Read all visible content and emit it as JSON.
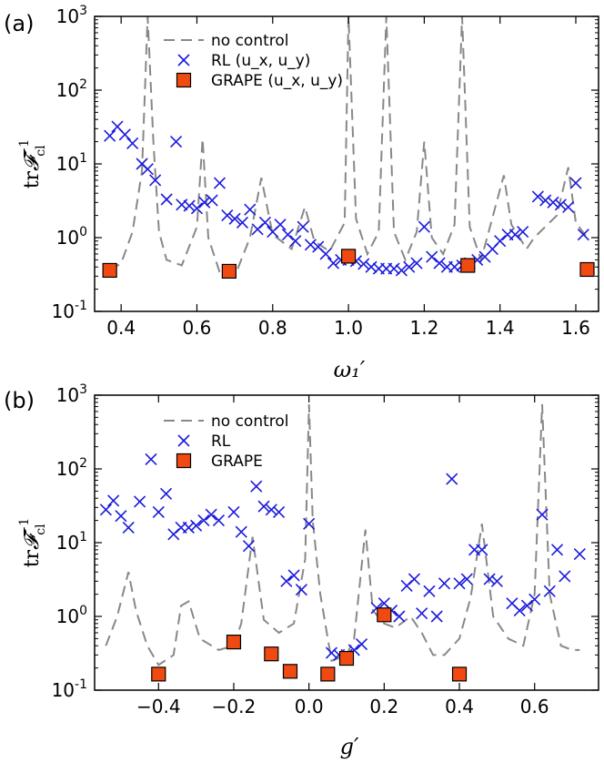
{
  "chart_data": [
    {
      "type": "line",
      "panel_label": "(a)",
      "xlabel": "ω₁′",
      "ylabel": "tr 𝓕_cl⁻¹",
      "xlim": [
        0.33,
        1.66
      ],
      "ylim_log10": [
        -1,
        3
      ],
      "yscale": "log",
      "xticks": [
        0.4,
        0.6,
        0.8,
        1.0,
        1.2,
        1.4,
        1.6
      ],
      "xtick_labels": [
        "0.4",
        "0.6",
        "0.8",
        "1.0",
        "1.2",
        "1.4",
        "1.6"
      ],
      "ytick_exponents": [
        -1,
        0,
        1,
        2,
        3
      ],
      "legend": [
        "no control",
        "RL (u_x, u_y)",
        "GRAPE (u_x, u_y)"
      ],
      "legend_position": "upper left",
      "series": [
        {
          "name": "no control",
          "kind": "dashed-line",
          "color": "#888888",
          "points": [
            [
              0.37,
              0.36
            ],
            [
              0.4,
              0.45
            ],
            [
              0.43,
              1.2
            ],
            [
              0.455,
              8
            ],
            [
              0.47,
              1000
            ],
            [
              0.485,
              20
            ],
            [
              0.5,
              1.2
            ],
            [
              0.52,
              0.5
            ],
            [
              0.56,
              0.42
            ],
            [
              0.6,
              1.4
            ],
            [
              0.615,
              22
            ],
            [
              0.63,
              1.0
            ],
            [
              0.66,
              0.34
            ],
            [
              0.7,
              0.3
            ],
            [
              0.74,
              1.0
            ],
            [
              0.77,
              6.5
            ],
            [
              0.8,
              1.1
            ],
            [
              0.85,
              0.7
            ],
            [
              0.885,
              2.6
            ],
            [
              0.91,
              0.9
            ],
            [
              0.95,
              0.65
            ],
            [
              0.99,
              1.6
            ],
            [
              1.0,
              1000
            ],
            [
              1.02,
              1.8
            ],
            [
              1.05,
              0.6
            ],
            [
              1.08,
              1.2
            ],
            [
              1.1,
              1000
            ],
            [
              1.12,
              1.2
            ],
            [
              1.15,
              0.5
            ],
            [
              1.18,
              1.2
            ],
            [
              1.2,
              20
            ],
            [
              1.22,
              1.0
            ],
            [
              1.25,
              0.6
            ],
            [
              1.28,
              1.5
            ],
            [
              1.3,
              1000
            ],
            [
              1.32,
              1.4
            ],
            [
              1.35,
              0.5
            ],
            [
              1.37,
              1.2
            ],
            [
              1.41,
              7
            ],
            [
              1.43,
              1.5
            ],
            [
              1.47,
              0.7
            ],
            [
              1.49,
              1.0
            ],
            [
              1.55,
              2.0
            ],
            [
              1.58,
              9
            ],
            [
              1.6,
              1.6
            ],
            [
              1.63,
              1.0
            ]
          ]
        },
        {
          "name": "RL (u_x, u_y)",
          "kind": "x-markers",
          "color": "#1a1adc",
          "points": [
            [
              0.37,
              24
            ],
            [
              0.39,
              32
            ],
            [
              0.41,
              25
            ],
            [
              0.43,
              19
            ],
            [
              0.455,
              10
            ],
            [
              0.47,
              8.5
            ],
            [
              0.49,
              6
            ],
            [
              0.52,
              3.3
            ],
            [
              0.545,
              20
            ],
            [
              0.56,
              2.8
            ],
            [
              0.58,
              2.7
            ],
            [
              0.6,
              2.5
            ],
            [
              0.62,
              3
            ],
            [
              0.64,
              3.2
            ],
            [
              0.66,
              5.5
            ],
            [
              0.68,
              2
            ],
            [
              0.7,
              1.8
            ],
            [
              0.72,
              1.6
            ],
            [
              0.74,
              2.4
            ],
            [
              0.76,
              1.3
            ],
            [
              0.78,
              1.6
            ],
            [
              0.8,
              1.2
            ],
            [
              0.82,
              1.5
            ],
            [
              0.84,
              1.1
            ],
            [
              0.86,
              0.9
            ],
            [
              0.88,
              1.4
            ],
            [
              0.9,
              0.8
            ],
            [
              0.92,
              0.75
            ],
            [
              0.94,
              0.6
            ],
            [
              0.96,
              0.45
            ],
            [
              0.98,
              0.5
            ],
            [
              1.0,
              0.5
            ],
            [
              1.02,
              0.48
            ],
            [
              1.04,
              0.44
            ],
            [
              1.06,
              0.4
            ],
            [
              1.08,
              0.38
            ],
            [
              1.1,
              0.38
            ],
            [
              1.12,
              0.38
            ],
            [
              1.14,
              0.36
            ],
            [
              1.16,
              0.4
            ],
            [
              1.18,
              0.45
            ],
            [
              1.2,
              1.4
            ],
            [
              1.22,
              0.55
            ],
            [
              1.24,
              0.45
            ],
            [
              1.26,
              0.4
            ],
            [
              1.28,
              0.4
            ],
            [
              1.3,
              0.42
            ],
            [
              1.32,
              0.45
            ],
            [
              1.34,
              0.5
            ],
            [
              1.36,
              0.55
            ],
            [
              1.38,
              0.7
            ],
            [
              1.4,
              0.9
            ],
            [
              1.42,
              1.1
            ],
            [
              1.44,
              1.1
            ],
            [
              1.46,
              1.2
            ],
            [
              1.5,
              3.6
            ],
            [
              1.52,
              3.2
            ],
            [
              1.54,
              3
            ],
            [
              1.56,
              2.8
            ],
            [
              1.58,
              2.6
            ],
            [
              1.6,
              5.5
            ],
            [
              1.62,
              1.1
            ]
          ]
        },
        {
          "name": "GRAPE (u_x, u_y)",
          "kind": "square-markers",
          "color": "#f04a12",
          "points": [
            [
              0.37,
              0.36
            ],
            [
              0.685,
              0.35
            ],
            [
              1.0,
              0.56
            ],
            [
              1.315,
              0.42
            ],
            [
              1.63,
              0.37
            ]
          ]
        }
      ]
    },
    {
      "type": "line",
      "panel_label": "(b)",
      "xlabel": "g′",
      "ylabel": "tr 𝓕_cl⁻¹",
      "xlim": [
        -0.57,
        0.77
      ],
      "ylim_log10": [
        -1,
        3
      ],
      "yscale": "log",
      "xticks": [
        -0.4,
        -0.2,
        0.0,
        0.2,
        0.4,
        0.6
      ],
      "xtick_labels": [
        "−0.4",
        "−0.2",
        "0.0",
        "0.2",
        "0.4",
        "0.6"
      ],
      "ytick_exponents": [
        -1,
        0,
        1,
        2,
        3
      ],
      "legend": [
        "no control",
        "RL",
        "GRAPE"
      ],
      "legend_position": "upper left",
      "series": [
        {
          "name": "no control",
          "kind": "dashed-line",
          "color": "#888888",
          "points": [
            [
              -0.54,
              0.4
            ],
            [
              -0.51,
              1.0
            ],
            [
              -0.48,
              4
            ],
            [
              -0.46,
              1.2
            ],
            [
              -0.43,
              0.4
            ],
            [
              -0.4,
              0.22
            ],
            [
              -0.36,
              0.3
            ],
            [
              -0.34,
              1.4
            ],
            [
              -0.32,
              1.6
            ],
            [
              -0.29,
              0.5
            ],
            [
              -0.24,
              0.35
            ],
            [
              -0.2,
              0.4
            ],
            [
              -0.18,
              0.8
            ],
            [
              -0.15,
              12
            ],
            [
              -0.12,
              0.9
            ],
            [
              -0.08,
              0.6
            ],
            [
              -0.04,
              0.8
            ],
            [
              -0.01,
              6
            ],
            [
              0.0,
              750
            ],
            [
              0.01,
              20
            ],
            [
              0.03,
              2
            ],
            [
              0.06,
              0.25
            ],
            [
              0.1,
              0.3
            ],
            [
              0.12,
              0.5
            ],
            [
              0.15,
              15
            ],
            [
              0.17,
              1.2
            ],
            [
              0.2,
              0.8
            ],
            [
              0.23,
              0.7
            ],
            [
              0.27,
              1.0
            ],
            [
              0.3,
              0.6
            ],
            [
              0.33,
              0.3
            ],
            [
              0.36,
              0.3
            ],
            [
              0.4,
              0.5
            ],
            [
              0.43,
              1.8
            ],
            [
              0.46,
              18
            ],
            [
              0.49,
              1.0
            ],
            [
              0.53,
              0.5
            ],
            [
              0.57,
              0.4
            ],
            [
              0.6,
              2
            ],
            [
              0.62,
              750
            ],
            [
              0.64,
              2
            ],
            [
              0.67,
              0.4
            ],
            [
              0.7,
              0.35
            ],
            [
              0.72,
              0.35
            ]
          ]
        },
        {
          "name": "RL",
          "kind": "x-markers",
          "color": "#1a1adc",
          "points": [
            [
              -0.54,
              28
            ],
            [
              -0.52,
              37
            ],
            [
              -0.5,
              23
            ],
            [
              -0.48,
              16
            ],
            [
              -0.45,
              36
            ],
            [
              -0.42,
              135
            ],
            [
              -0.4,
              26
            ],
            [
              -0.38,
              46
            ],
            [
              -0.36,
              13
            ],
            [
              -0.34,
              16
            ],
            [
              -0.32,
              16
            ],
            [
              -0.3,
              17
            ],
            [
              -0.28,
              20
            ],
            [
              -0.26,
              24
            ],
            [
              -0.24,
              20
            ],
            [
              -0.2,
              26
            ],
            [
              -0.18,
              14
            ],
            [
              -0.16,
              9
            ],
            [
              -0.14,
              58
            ],
            [
              -0.12,
              31
            ],
            [
              -0.1,
              28
            ],
            [
              -0.08,
              26
            ],
            [
              -0.06,
              3
            ],
            [
              -0.04,
              3.6
            ],
            [
              -0.02,
              2.3
            ],
            [
              0.0,
              18
            ],
            [
              0.06,
              0.32
            ],
            [
              0.08,
              0.3
            ],
            [
              0.1,
              0.3
            ],
            [
              0.12,
              0.35
            ],
            [
              0.14,
              0.42
            ],
            [
              0.18,
              1.3
            ],
            [
              0.2,
              1.5
            ],
            [
              0.22,
              1.2
            ],
            [
              0.24,
              1.0
            ],
            [
              0.26,
              2.6
            ],
            [
              0.28,
              3.2
            ],
            [
              0.3,
              1.1
            ],
            [
              0.32,
              2.2
            ],
            [
              0.34,
              1.0
            ],
            [
              0.36,
              2.8
            ],
            [
              0.38,
              73
            ],
            [
              0.4,
              2.8
            ],
            [
              0.42,
              3.2
            ],
            [
              0.44,
              8
            ],
            [
              0.46,
              8
            ],
            [
              0.48,
              3.2
            ],
            [
              0.5,
              3
            ],
            [
              0.54,
              1.5
            ],
            [
              0.56,
              1.2
            ],
            [
              0.58,
              1.4
            ],
            [
              0.6,
              1.7
            ],
            [
              0.62,
              24
            ],
            [
              0.64,
              2.2
            ],
            [
              0.66,
              8
            ],
            [
              0.68,
              3.5
            ],
            [
              0.72,
              7
            ]
          ]
        },
        {
          "name": "GRAPE",
          "kind": "square-markers",
          "color": "#f04a12",
          "points": [
            [
              -0.4,
              0.165
            ],
            [
              -0.2,
              0.45
            ],
            [
              -0.1,
              0.31
            ],
            [
              -0.05,
              0.18
            ],
            [
              0.05,
              0.165
            ],
            [
              0.1,
              0.27
            ],
            [
              0.2,
              1.05
            ],
            [
              0.4,
              0.165
            ]
          ]
        }
      ]
    }
  ]
}
